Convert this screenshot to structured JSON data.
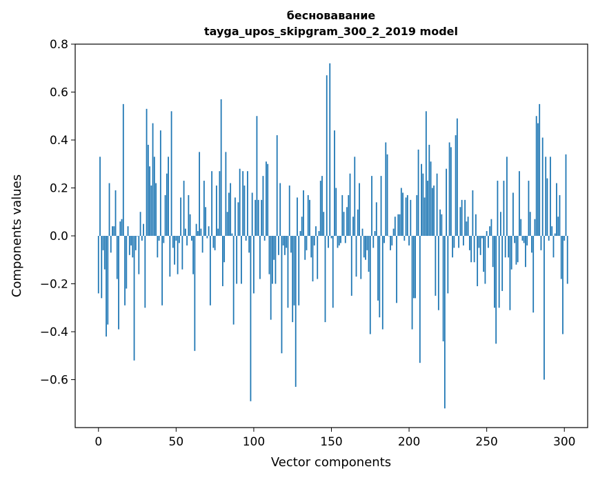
{
  "chart_data": {
    "type": "bar",
    "title": "бесновавание",
    "subtitle": "tayga_upos_skipgram_300_2_2019 model",
    "xlabel": "Vector components",
    "ylabel": "Components values",
    "xlim": [
      -15,
      315
    ],
    "ylim": [
      -0.8,
      0.8
    ],
    "xticks": [
      0,
      50,
      100,
      150,
      200,
      250,
      300
    ],
    "yticks": [
      -0.6,
      -0.4,
      -0.2,
      0.0,
      0.2,
      0.4,
      0.6,
      0.8
    ],
    "ytick_labels": [
      "−0.6",
      "−0.4",
      "−0.2",
      "0.0",
      "0.2",
      "0.4",
      "0.6",
      "0.8"
    ],
    "xtick_labels": [
      "0",
      "50",
      "100",
      "150",
      "200",
      "250",
      "300"
    ],
    "bar_color": "#1f77b4",
    "grid": false,
    "values": [
      -0.24,
      0.33,
      -0.26,
      -0.06,
      -0.14,
      -0.42,
      -0.37,
      0.22,
      -0.07,
      0.04,
      0.04,
      0.19,
      -0.18,
      -0.39,
      0.06,
      0.07,
      0.55,
      -0.29,
      -0.22,
      0.04,
      -0.08,
      -0.04,
      -0.09,
      -0.52,
      -0.06,
      0.0,
      -0.16,
      0.1,
      -0.02,
      0.05,
      -0.3,
      0.53,
      0.38,
      0.29,
      0.21,
      0.47,
      0.33,
      0.22,
      -0.09,
      -0.02,
      0.44,
      -0.29,
      -0.03,
      0.17,
      0.26,
      0.33,
      -0.17,
      0.52,
      -0.05,
      -0.12,
      -0.02,
      -0.16,
      -0.03,
      0.16,
      -0.14,
      0.23,
      0.03,
      -0.04,
      0.17,
      0.09,
      -0.02,
      -0.16,
      -0.48,
      0.05,
      0.02,
      0.35,
      0.03,
      -0.07,
      0.23,
      0.12,
      -0.01,
      0.04,
      -0.29,
      0.27,
      -0.05,
      -0.06,
      0.21,
      0.03,
      0.27,
      0.57,
      -0.21,
      -0.11,
      0.35,
      0.1,
      0.18,
      0.22,
      0.01,
      -0.37,
      0.16,
      -0.2,
      0.14,
      0.28,
      -0.2,
      0.27,
      0.21,
      -0.02,
      0.27,
      -0.07,
      -0.69,
      0.18,
      -0.24,
      0.15,
      0.5,
      0.15,
      -0.18,
      0.15,
      0.25,
      -0.02,
      0.31,
      0.3,
      -0.16,
      -0.35,
      -0.2,
      -0.1,
      -0.2,
      0.42,
      -0.08,
      0.22,
      -0.49,
      -0.04,
      -0.08,
      -0.05,
      -0.3,
      0.21,
      -0.07,
      -0.36,
      -0.29,
      -0.63,
      0.16,
      -0.29,
      0.02,
      0.08,
      0.19,
      -0.1,
      -0.06,
      0.17,
      0.15,
      -0.09,
      -0.19,
      -0.04,
      0.04,
      -0.18,
      0.02,
      0.23,
      0.25,
      0.1,
      -0.36,
      0.67,
      -0.05,
      0.72,
      -0.01,
      -0.3,
      0.44,
      0.2,
      -0.05,
      -0.04,
      -0.03,
      0.17,
      0.1,
      -0.03,
      0.12,
      0.17,
      0.26,
      -0.25,
      0.08,
      0.33,
      -0.17,
      0.11,
      0.22,
      -0.18,
      0.03,
      -0.09,
      -0.1,
      -0.06,
      -0.15,
      -0.41,
      0.25,
      -0.05,
      0.02,
      0.14,
      -0.27,
      -0.34,
      0.25,
      -0.39,
      -0.03,
      0.39,
      0.34,
      0.0,
      -0.06,
      -0.04,
      0.03,
      0.08,
      -0.28,
      0.09,
      0.09,
      0.2,
      0.18,
      -0.02,
      0.16,
      0.17,
      -0.04,
      0.15,
      -0.39,
      -0.26,
      -0.26,
      0.17,
      0.36,
      -0.53,
      0.3,
      0.26,
      0.16,
      0.52,
      0.23,
      0.38,
      0.31,
      0.2,
      0.21,
      -0.25,
      0.26,
      -0.31,
      0.11,
      0.09,
      -0.44,
      -0.72,
      0.28,
      -0.24,
      0.39,
      0.37,
      -0.09,
      -0.05,
      0.42,
      0.49,
      -0.05,
      0.12,
      0.15,
      -0.04,
      0.15,
      0.06,
      0.08,
      -0.06,
      -0.11,
      0.19,
      -0.11,
      0.09,
      -0.21,
      -0.05,
      -0.08,
      -0.01,
      -0.15,
      -0.2,
      0.02,
      -0.05,
      0.04,
      0.07,
      -0.13,
      -0.3,
      -0.45,
      0.23,
      -0.3,
      0.1,
      -0.23,
      0.23,
      -0.09,
      0.33,
      -0.09,
      -0.31,
      -0.14,
      0.18,
      -0.03,
      -0.12,
      -0.11,
      0.27,
      0.07,
      -0.02,
      -0.03,
      -0.13,
      -0.04,
      0.23,
      0.1,
      -0.07,
      -0.32,
      0.07,
      0.5,
      0.47,
      0.55,
      -0.06,
      0.41,
      -0.6,
      0.33,
      0.24,
      -0.02,
      0.33,
      0.04,
      -0.09,
      0.01,
      0.22,
      0.08,
      0.17,
      -0.18,
      -0.41,
      -0.02,
      0.34,
      -0.2
    ]
  }
}
